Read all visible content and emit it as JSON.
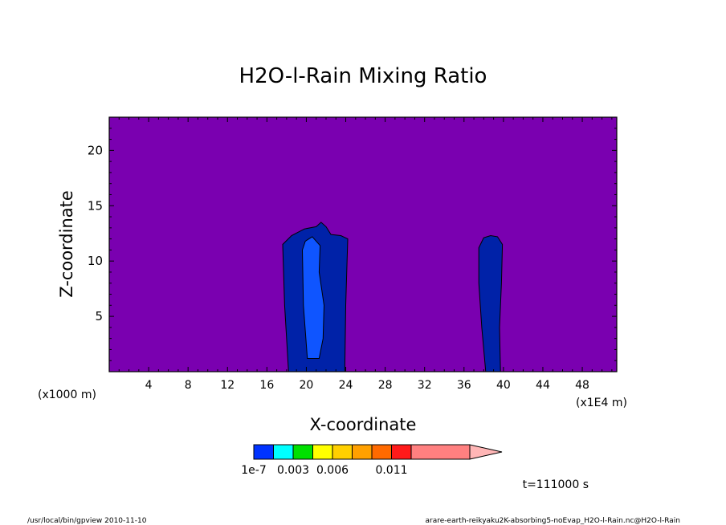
{
  "chart_data": {
    "type": "heatmap",
    "title": "H2O-l-Rain Mixing Ratio",
    "xlabel": "X-coordinate",
    "ylabel": "Z-coordinate",
    "x_unit_left": "(x1000 m)",
    "x_unit_right": "(x1E4 m)",
    "xlim": [
      0,
      51.5
    ],
    "ylim": [
      0,
      23
    ],
    "x_ticks": [
      4,
      8,
      12,
      16,
      20,
      24,
      28,
      32,
      36,
      40,
      44,
      48
    ],
    "y_ticks": [
      5,
      10,
      15,
      20
    ],
    "background_color": "#7a00b0",
    "contour_regions": [
      {
        "name": "column-1-outer",
        "color": "#0022a8",
        "outline": [
          [
            18.2,
            0
          ],
          [
            17.8,
            6
          ],
          [
            17.6,
            11.5
          ],
          [
            18.5,
            12.3
          ],
          [
            19.8,
            12.9
          ],
          [
            21,
            13.1
          ],
          [
            21.5,
            13.5
          ],
          [
            22,
            13.1
          ],
          [
            22.5,
            12.4
          ],
          [
            23.5,
            12.3
          ],
          [
            24.2,
            12
          ],
          [
            24,
            6
          ],
          [
            23.9,
            0
          ]
        ]
      },
      {
        "name": "column-1-inner",
        "color": "#0f55ff",
        "outline": [
          [
            20.1,
            1.2
          ],
          [
            19.7,
            6
          ],
          [
            19.6,
            11
          ],
          [
            19.9,
            11.8
          ],
          [
            20.6,
            12.2
          ],
          [
            21.4,
            11.4
          ],
          [
            21.3,
            9
          ],
          [
            21.8,
            6
          ],
          [
            21.7,
            3
          ],
          [
            21.3,
            1.2
          ]
        ]
      },
      {
        "name": "column-2",
        "color": "#0022a8",
        "outline": [
          [
            38.2,
            0
          ],
          [
            37.8,
            4
          ],
          [
            37.5,
            8
          ],
          [
            37.5,
            11.2
          ],
          [
            38,
            12.1
          ],
          [
            38.7,
            12.3
          ],
          [
            39.4,
            12.2
          ],
          [
            39.9,
            11.5
          ],
          [
            39.8,
            8
          ],
          [
            39.6,
            4
          ],
          [
            39.7,
            0
          ]
        ]
      }
    ],
    "colorbar": {
      "colors": [
        "#0033ff",
        "#00ffff",
        "#00e000",
        "#ffff00",
        "#ffd000",
        "#ffa000",
        "#ff6a00",
        "#ff1a1a",
        "#ff8080",
        "#ffb6b6"
      ],
      "labels": [
        {
          "text": "1e-7",
          "at": 0
        },
        {
          "text": "0.003",
          "at": 2
        },
        {
          "text": "0.006",
          "at": 4
        },
        {
          "text": "0.011",
          "at": 7
        }
      ]
    },
    "time_label": "t=111000 s"
  },
  "footer": {
    "left": "/usr/local/bin/gpview  2010-11-10",
    "right": "arare-earth-reikyaku2K-absorbing5-noEvap_H2O-l-Rain.nc@H2O-l-Rain"
  }
}
